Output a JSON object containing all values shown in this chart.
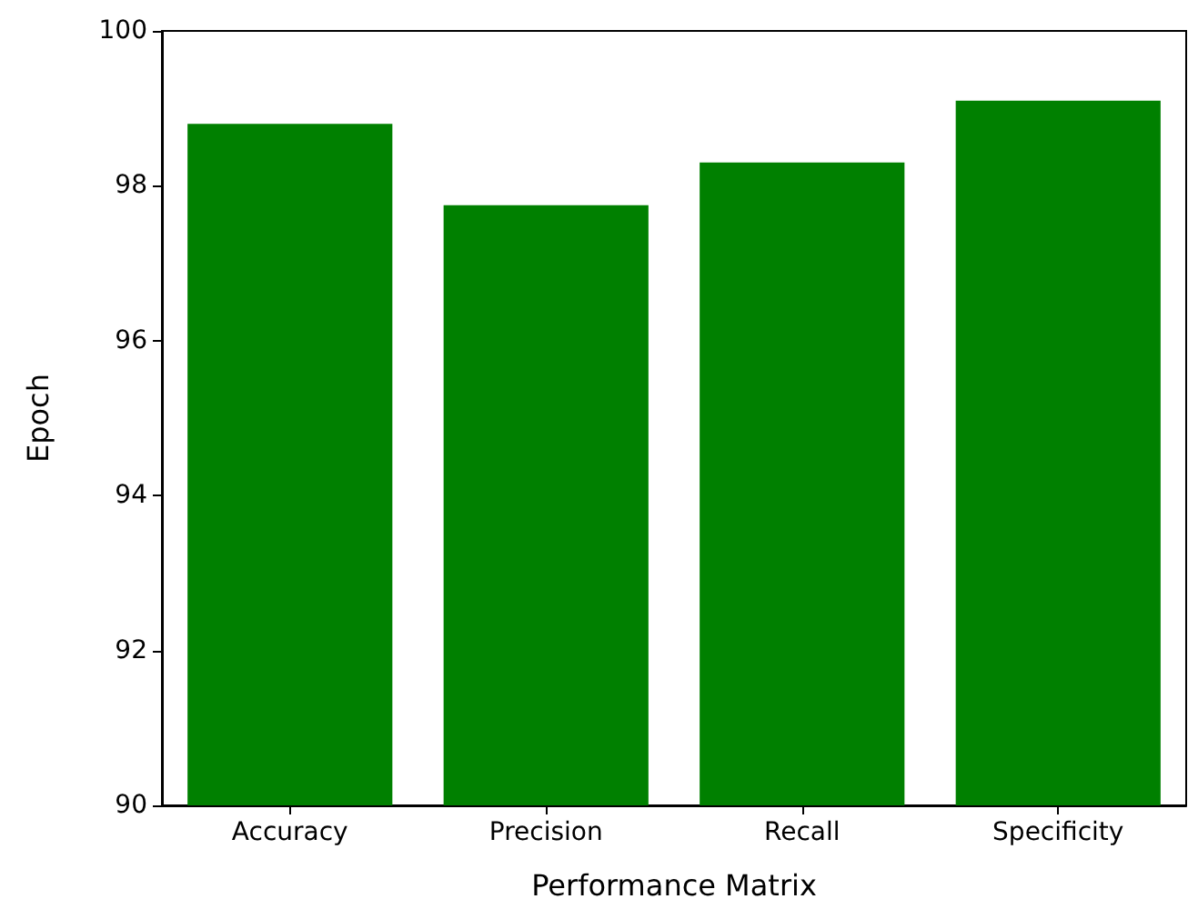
{
  "chart_data": {
    "type": "bar",
    "xlabel": "Performance Matrix",
    "ylabel": "Epoch",
    "categories": [
      "Accuracy",
      "Precision",
      "Recall",
      "Specificity"
    ],
    "values": [
      98.8,
      97.75,
      98.3,
      99.1
    ],
    "color": "#008000",
    "ylim": [
      90,
      100
    ],
    "yticks": [
      90,
      92,
      94,
      96,
      98,
      100
    ],
    "grid": false
  }
}
